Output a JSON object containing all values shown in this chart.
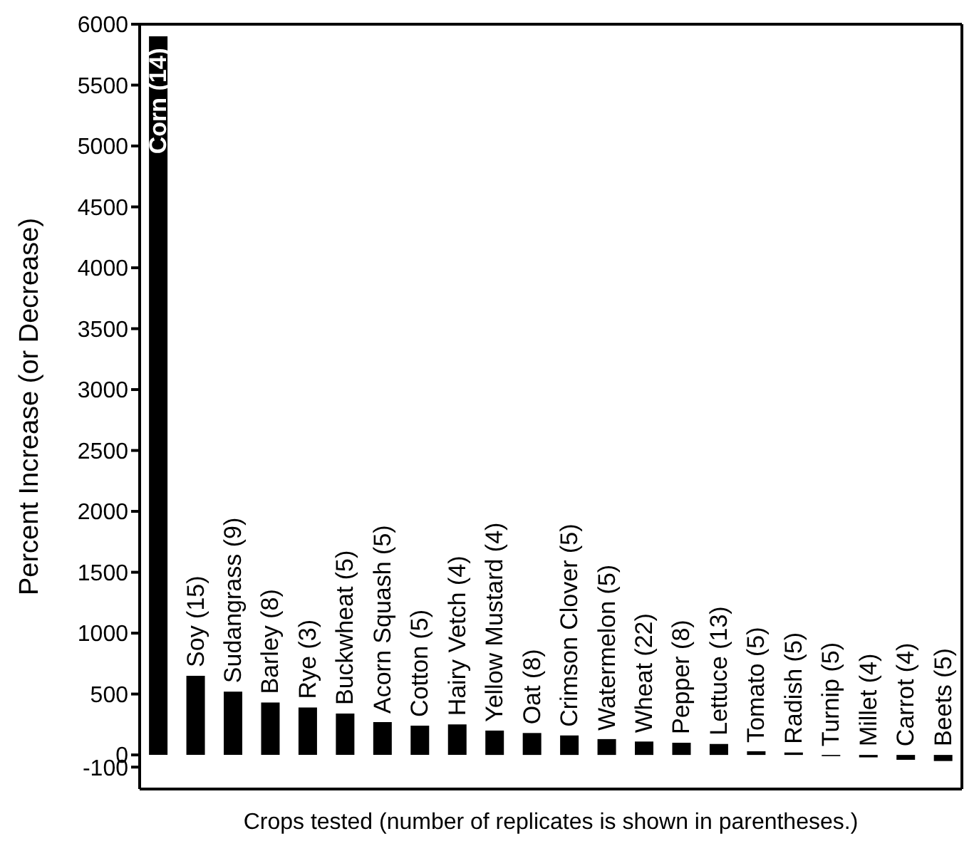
{
  "chart_data": {
    "type": "bar",
    "xlabel": "Crops tested (number of replicates is shown in parentheses.)",
    "ylabel": "Percent Increase (or Decrease)",
    "categories": [
      "Corn (14)",
      "Soy (15)",
      "Sudangrass (9)",
      "Barley (8)",
      "Rye (3)",
      "Buckwheat (5)",
      "Acorn Squash (5)",
      "Cotton (5)",
      "Hairy Vetch (4)",
      "Yellow Mustard (4)",
      "Oat (8)",
      "Crimson Clover (5)",
      "Watermelon (5)",
      "Wheat (22)",
      "Pepper (8)",
      "Lettuce (13)",
      "Tomato (5)",
      "Radish (5)",
      "Turnip (5)",
      "Millet (4)",
      "Carrot (4)",
      "Beets (5)"
    ],
    "values": [
      5900,
      650,
      520,
      430,
      390,
      340,
      270,
      240,
      250,
      200,
      180,
      160,
      130,
      110,
      100,
      90,
      30,
      20,
      -10,
      -20,
      -40,
      -50
    ],
    "color": "#000000",
    "ylim": [
      -280,
      6000
    ],
    "yticks": [
      -100,
      0,
      500,
      1000,
      1500,
      2000,
      2500,
      3000,
      3500,
      4000,
      4500,
      5000,
      5500,
      6000
    ],
    "grid": false,
    "legend": false
  }
}
